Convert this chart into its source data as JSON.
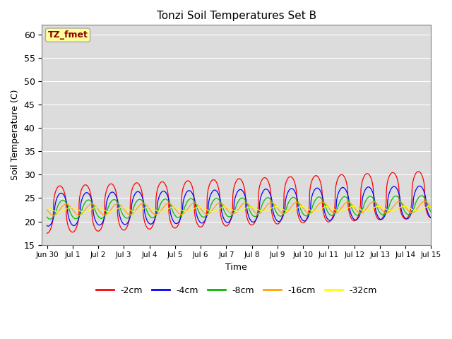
{
  "title": "Tonzi Soil Temperatures Set B",
  "ylabel": "Soil Temperature (C)",
  "xlabel": "Time",
  "ylim": [
    15,
    62
  ],
  "yticks": [
    15,
    20,
    25,
    30,
    35,
    40,
    45,
    50,
    55,
    60
  ],
  "annotation_text": "TZ_fmet",
  "annotation_color": "#8B0000",
  "annotation_bg": "#FFFF99",
  "lines": [
    {
      "label": "-2cm",
      "color": "#FF0000",
      "base": 22.5,
      "amp": 5.0,
      "phase": 0.0,
      "trend": 3.5,
      "sharpness": 2.5,
      "damp_trend": 1.0
    },
    {
      "label": "-4cm",
      "color": "#0000FF",
      "base": 22.5,
      "amp": 3.5,
      "phase": 0.05,
      "trend": 2.5,
      "sharpness": 1.8,
      "damp_trend": 0.7
    },
    {
      "label": "-8cm",
      "color": "#00BB00",
      "base": 22.5,
      "amp": 2.0,
      "phase": 0.12,
      "trend": 2.0,
      "sharpness": 1.2,
      "damp_trend": 0.55
    },
    {
      "label": "-16cm",
      "color": "#FFA500",
      "base": 22.5,
      "amp": 1.2,
      "phase": 0.25,
      "trend": 1.5,
      "sharpness": 1.0,
      "damp_trend": 0.42
    },
    {
      "label": "-32cm",
      "color": "#FFFF00",
      "base": 22.5,
      "amp": 0.5,
      "phase": 0.45,
      "trend": 1.0,
      "sharpness": 1.0,
      "damp_trend": 0.28
    }
  ],
  "n_days": 16,
  "periods_per_day": 288,
  "background_color": "#DCDCDC",
  "plot_bg_color": "#DCDCDC",
  "grid_color": "#FFFFFF",
  "spine_color": "#808080"
}
